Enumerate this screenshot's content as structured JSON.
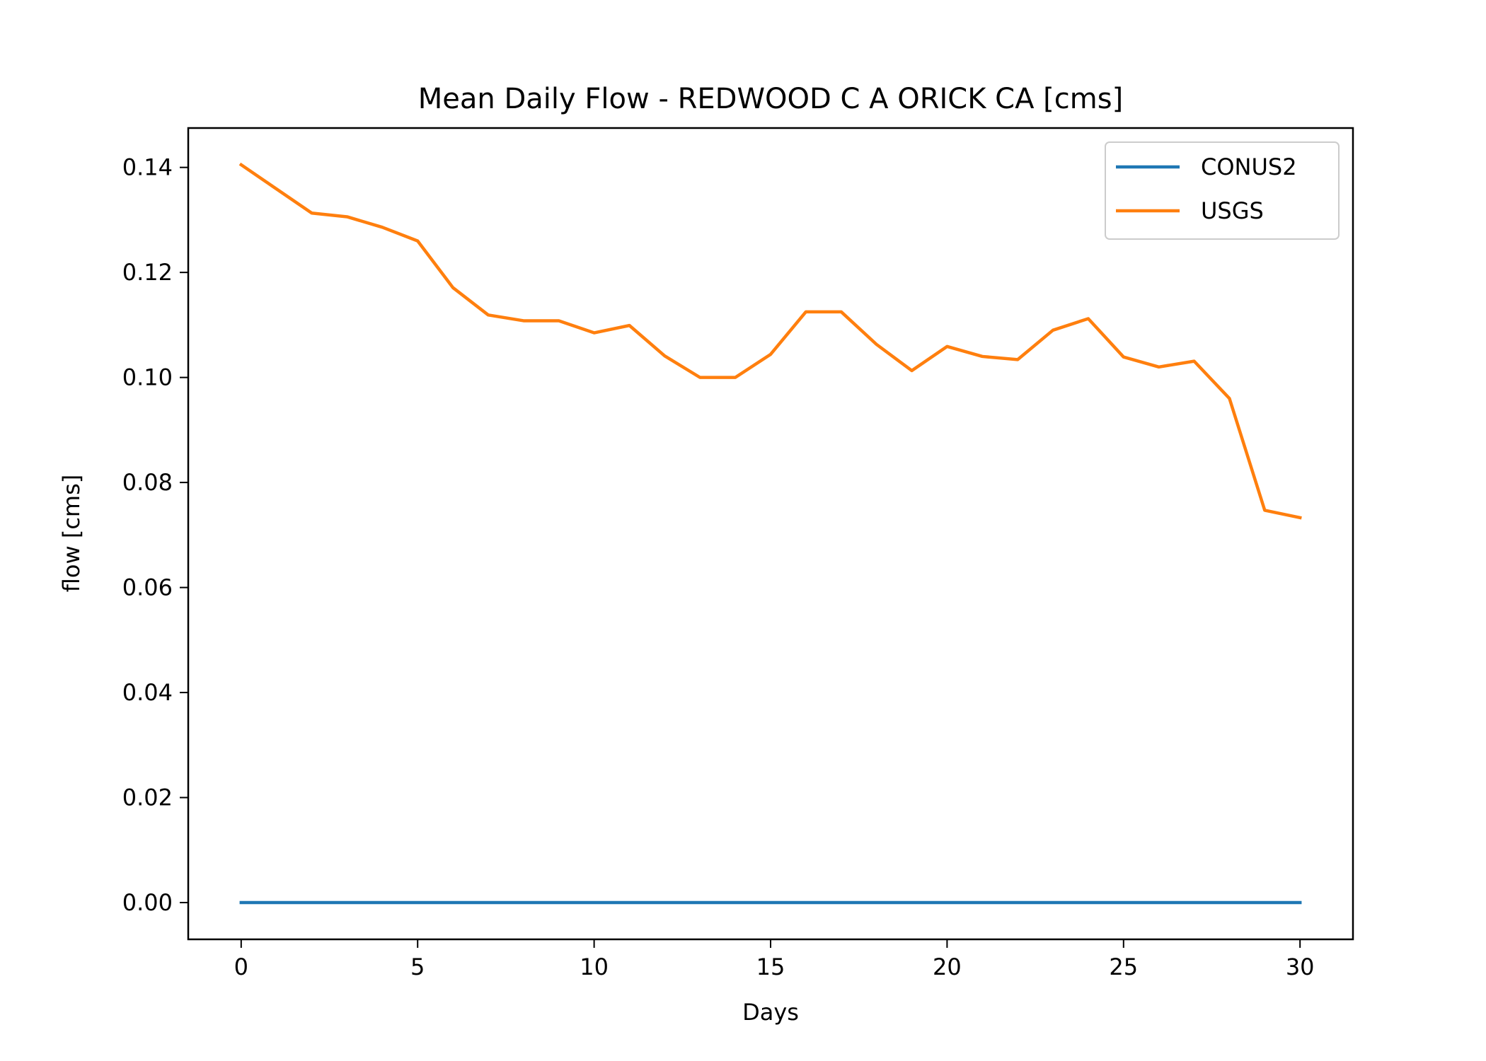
{
  "chart_data": {
    "type": "line",
    "title": "Mean Daily Flow - REDWOOD C A ORICK CA [cms]",
    "xlabel": "Days",
    "ylabel": "flow [cms]",
    "xlim": [
      -1.5,
      31.5
    ],
    "ylim": [
      -0.007,
      0.1475
    ],
    "x_ticks": [
      0,
      5,
      10,
      15,
      20,
      25,
      30
    ],
    "y_ticks": [
      0.0,
      0.02,
      0.04,
      0.06,
      0.08,
      0.1,
      0.12,
      0.14
    ],
    "grid": false,
    "legend": "upper right",
    "x": [
      0,
      1,
      2,
      3,
      4,
      5,
      6,
      7,
      8,
      9,
      10,
      11,
      12,
      13,
      14,
      15,
      16,
      17,
      18,
      19,
      20,
      21,
      22,
      23,
      24,
      25,
      26,
      27,
      28,
      29,
      30
    ],
    "series": [
      {
        "name": "CONUS2",
        "color": "#1f77b4",
        "values": [
          0,
          0,
          0,
          0,
          0,
          0,
          0,
          0,
          0,
          0,
          0,
          0,
          0,
          0,
          0,
          0,
          0,
          0,
          0,
          0,
          0,
          0,
          0,
          0,
          0,
          0,
          0,
          0,
          0,
          0,
          0
        ]
      },
      {
        "name": "USGS",
        "color": "#ff7f0e",
        "values": [
          0.1405,
          0.1359,
          0.1313,
          0.1306,
          0.1286,
          0.126,
          0.1171,
          0.1119,
          0.1108,
          0.1108,
          0.1085,
          0.1099,
          0.1041,
          0.1,
          0.1,
          0.1044,
          0.1125,
          0.1125,
          0.1063,
          0.1013,
          0.1059,
          0.104,
          0.1034,
          0.109,
          0.1112,
          0.1039,
          0.102,
          0.1031,
          0.096,
          0.0747,
          0.0733
        ]
      }
    ]
  }
}
